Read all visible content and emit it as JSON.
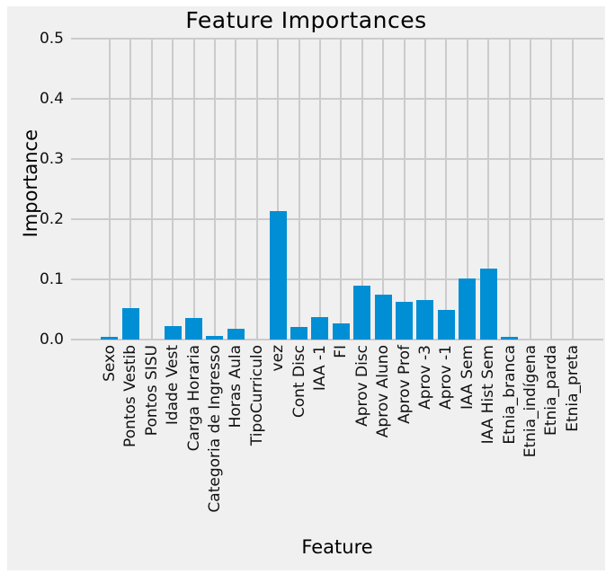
{
  "chart_data": {
    "type": "bar",
    "title": "Feature Importances",
    "xlabel": "Feature",
    "ylabel": "Importance",
    "categories": [
      "Sexo",
      "Pontos Vestib",
      "Pontos SISU",
      "Idade Vest",
      "Carga Horaria",
      "Categoria de Ingresso",
      "Horas Aula",
      "TipoCurriculo",
      "vez",
      "Cont Disc",
      "IAA -1",
      "FI",
      "Aprov Disc",
      "Aprov Aluno",
      "Aprov Prof",
      "Aprov -3",
      "Aprov -1",
      "IAA Sem",
      "IAA Hist Sem",
      "Etnia_branca",
      "Etnia_indígena",
      "Etnia_parda",
      "Etnia_preta"
    ],
    "values": [
      0.004,
      0.052,
      0.0,
      0.023,
      0.036,
      0.006,
      0.018,
      0.0,
      0.213,
      0.021,
      0.038,
      0.027,
      0.089,
      0.075,
      0.062,
      0.066,
      0.05,
      0.101,
      0.118,
      0.004,
      0.0,
      0.0,
      0.0
    ],
    "ylim": [
      0.0,
      0.5
    ],
    "yticks": [
      0.0,
      0.1,
      0.2,
      0.3,
      0.4,
      0.5
    ],
    "grid": true,
    "legend": "none",
    "style": {
      "bar_color": "#008fd5",
      "figure_background": "#f0f0f0",
      "page_background": "#ffffff",
      "grid_color": "#cbcbcb",
      "text_color": "#111111"
    }
  }
}
